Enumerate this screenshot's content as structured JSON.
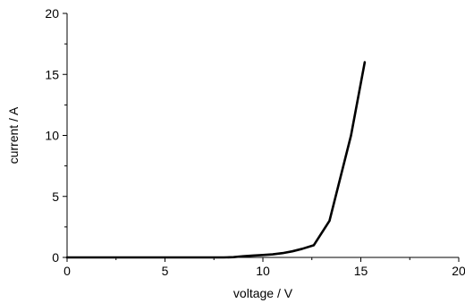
{
  "chart_data": {
    "type": "line",
    "title": "",
    "xlabel": "voltage / V",
    "ylabel": "current / A",
    "xlim": [
      0,
      20
    ],
    "ylim": [
      0,
      20
    ],
    "x_ticks": [
      "0",
      "5",
      "10",
      "15",
      "20"
    ],
    "y_ticks": [
      "0",
      "5",
      "10",
      "15",
      "20"
    ],
    "grid": false,
    "legend": "none",
    "line_color": "#000000",
    "series": [
      {
        "x": [
          0,
          1,
          2,
          3,
          4,
          5,
          6,
          7,
          8,
          8.5,
          9,
          9.5,
          10,
          10.5,
          11,
          11.5,
          12,
          12.6,
          13.4,
          14.5,
          15.2
        ],
        "y": [
          0,
          0,
          0,
          0,
          0,
          0,
          0,
          0,
          0,
          0.02,
          0.1,
          0.15,
          0.2,
          0.25,
          0.35,
          0.5,
          0.7,
          1.0,
          3.0,
          10.0,
          16.0
        ]
      }
    ]
  }
}
